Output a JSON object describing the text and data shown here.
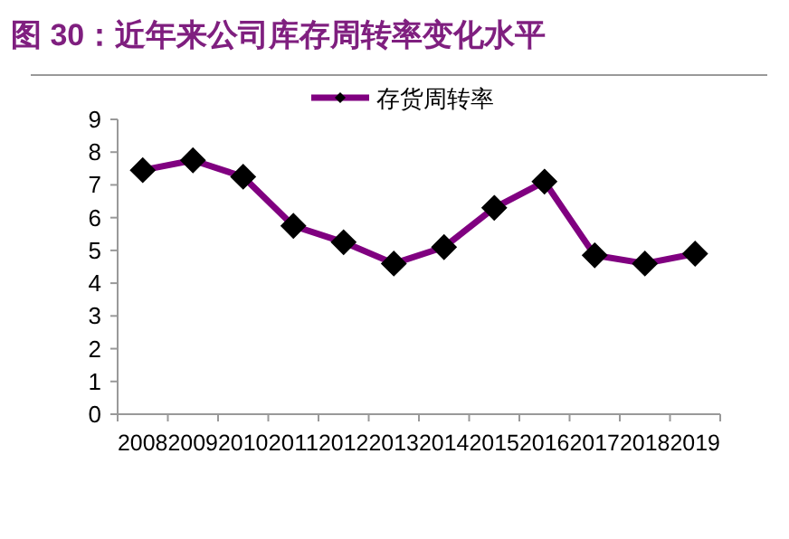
{
  "chart_data": {
    "type": "line",
    "title": "图 30：近年来公司库存周转率变化水平",
    "categories": [
      "2008",
      "2009",
      "2010",
      "2011",
      "2012",
      "2013",
      "2014",
      "2015",
      "2016",
      "2017",
      "2018",
      "2019"
    ],
    "series": [
      {
        "name": "存货周转率",
        "color": "#800080",
        "values": [
          7.45,
          7.75,
          7.25,
          5.75,
          5.25,
          4.6,
          5.1,
          6.3,
          7.1,
          4.85,
          4.6,
          4.9
        ]
      }
    ],
    "ylim": [
      0,
      9
    ],
    "yticks": [
      0,
      1,
      2,
      3,
      4,
      5,
      6,
      7,
      8,
      9
    ],
    "grid": false,
    "legend": "top",
    "marker": "diamond",
    "line_style": "solid"
  }
}
